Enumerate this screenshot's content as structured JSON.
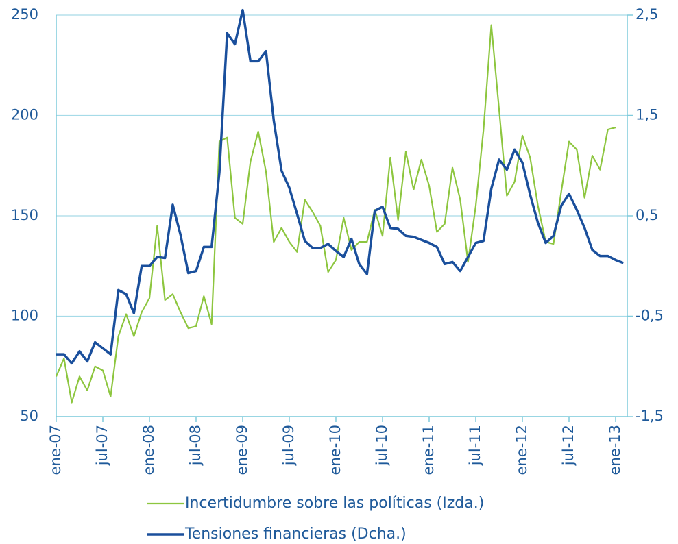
{
  "chart_data": {
    "type": "line",
    "categories": [
      "ene-07",
      null,
      null,
      null,
      null,
      null,
      "jul-07",
      null,
      null,
      null,
      null,
      null,
      "ene-08",
      null,
      null,
      null,
      null,
      null,
      "jul-08",
      null,
      null,
      null,
      null,
      null,
      "ene-09",
      null,
      null,
      null,
      null,
      null,
      "jul-09",
      null,
      null,
      null,
      null,
      null,
      "ene-10",
      null,
      null,
      null,
      null,
      null,
      "jul-10",
      null,
      null,
      null,
      null,
      null,
      "ene-11",
      null,
      null,
      null,
      null,
      null,
      "jul-11",
      null,
      null,
      null,
      null,
      null,
      "ene-12",
      null,
      null,
      null,
      null,
      null,
      "jul-12",
      null,
      null,
      null,
      null,
      null,
      "ene-13",
      null
    ],
    "series": [
      {
        "name": "Incertidumbre sobre las políticas (Izda.)",
        "color": "#8dc63f",
        "axis": "y",
        "values": [
          70,
          79,
          57,
          70,
          63,
          75,
          73,
          60,
          90,
          101,
          90,
          102,
          109,
          145,
          108,
          111,
          102,
          94,
          95,
          110,
          96,
          187,
          189,
          149,
          146,
          177,
          192,
          172,
          137,
          144,
          137,
          132,
          158,
          152,
          145,
          122,
          128,
          149,
          133,
          137,
          137,
          153,
          140,
          179,
          148,
          182,
          163,
          178,
          165,
          142,
          146,
          174,
          158,
          127,
          155,
          193,
          245,
          203,
          160,
          167,
          190,
          179,
          155,
          137,
          136,
          162,
          187,
          183,
          159,
          180,
          173,
          193,
          194,
          null
        ]
      },
      {
        "name": "Tensiones financieras (Dcha.)",
        "color": "#1a4f9c",
        "axis": "y2",
        "values": [
          -0.88,
          -0.88,
          -0.97,
          -0.85,
          -0.95,
          -0.76,
          -0.82,
          -0.88,
          -0.24,
          -0.28,
          -0.47,
          0.0,
          0.0,
          0.09,
          0.08,
          0.61,
          0.31,
          -0.07,
          -0.05,
          0.19,
          0.19,
          0.93,
          2.32,
          2.21,
          2.55,
          2.04,
          2.04,
          2.14,
          1.45,
          0.95,
          0.78,
          0.52,
          0.25,
          0.18,
          0.18,
          0.22,
          0.15,
          0.09,
          0.27,
          0.02,
          -0.08,
          0.55,
          0.59,
          0.38,
          0.37,
          0.3,
          0.29,
          0.26,
          0.23,
          0.19,
          0.02,
          0.04,
          -0.05,
          0.09,
          0.23,
          0.25,
          0.77,
          1.06,
          0.96,
          1.16,
          1.03,
          0.71,
          0.43,
          0.23,
          0.3,
          0.6,
          0.72,
          0.56,
          0.38,
          0.16,
          0.1,
          0.1,
          0.06,
          0.03
        ]
      }
    ],
    "ylim": [
      50,
      250
    ],
    "yticks": [
      50,
      100,
      150,
      200,
      250
    ],
    "y2lim": [
      -1.5,
      2.5
    ],
    "y2ticks": [
      {
        "value": -1.5,
        "label": "-1,5"
      },
      {
        "value": -0.5,
        "label": "-0,5"
      },
      {
        "value": 0.5,
        "label": "0,5"
      },
      {
        "value": 1.5,
        "label": "1,5"
      },
      {
        "value": 2.5,
        "label": "2,5"
      }
    ],
    "grid": true,
    "legend": "bottom"
  }
}
